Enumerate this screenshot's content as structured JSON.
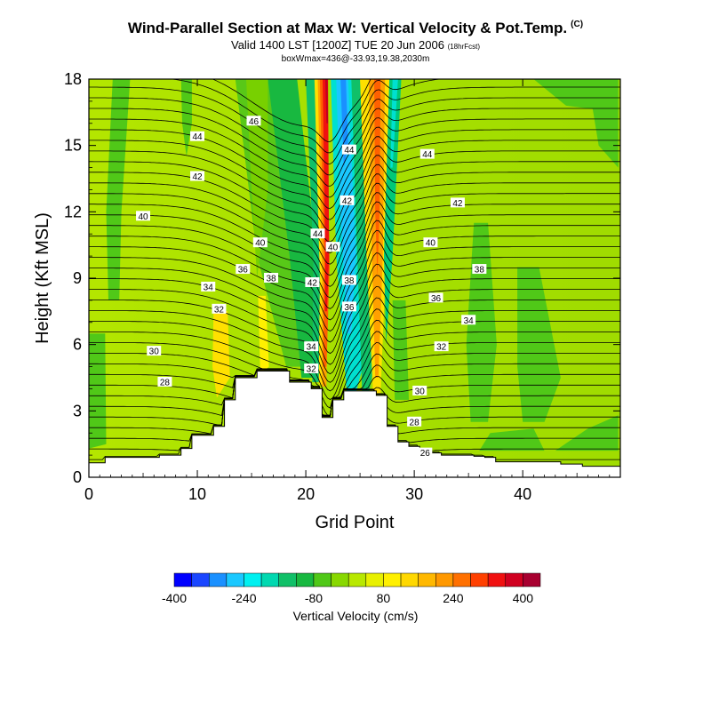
{
  "header": {
    "title": "Wind-Parallel Section at Max W: Vertical Velocity & Pot.Temp.",
    "title_mark": "(C)",
    "subtitle": "Valid 1400 LST [1200Z] TUE 20 Jun 2006",
    "subtitle_note": "(18hrFcst)",
    "subtitle2": "boxWmax=436@-33.93,19.38,2030m"
  },
  "chart_data": {
    "type": "heatmap",
    "xlabel": "Grid Point",
    "ylabel": "Height (Kft MSL)",
    "xlim": [
      0,
      49
    ],
    "ylim": [
      0,
      18
    ],
    "xticks": [
      0,
      10,
      20,
      30,
      40
    ],
    "yticks": [
      0,
      3,
      6,
      9,
      12,
      15,
      18
    ],
    "terrain_heights_kft": [
      0.65,
      0.65,
      0.9,
      0.9,
      0.9,
      0.9,
      0.9,
      1.0,
      1.0,
      1.3,
      1.9,
      1.9,
      2.3,
      3.5,
      4.5,
      4.5,
      4.8,
      4.8,
      4.8,
      4.3,
      4.3,
      4.0,
      2.7,
      3.5,
      3.9,
      3.9,
      3.9,
      3.7,
      2.3,
      1.6,
      1.4,
      1.2,
      1.1,
      1.0,
      1.0,
      1.0,
      0.95,
      0.9,
      0.7,
      0.7,
      0.7,
      0.7,
      0.7,
      0.7,
      0.6,
      0.6,
      0.5,
      0.5,
      0.5,
      0.5
    ],
    "contour_field": "Potential Temperature (C)",
    "contour_labels": [
      {
        "x": 7.0,
        "y": 4.3,
        "value": "28"
      },
      {
        "x": 6.0,
        "y": 5.7,
        "value": "30"
      },
      {
        "x": 12.0,
        "y": 7.6,
        "value": "32"
      },
      {
        "x": 11.0,
        "y": 8.6,
        "value": "34"
      },
      {
        "x": 14.2,
        "y": 9.4,
        "value": "36"
      },
      {
        "x": 16.8,
        "y": 9.0,
        "value": "38"
      },
      {
        "x": 15.8,
        "y": 10.6,
        "value": "40"
      },
      {
        "x": 10.0,
        "y": 13.6,
        "value": "42"
      },
      {
        "x": 10.0,
        "y": 15.4,
        "value": "44"
      },
      {
        "x": 15.2,
        "y": 16.1,
        "value": "46"
      },
      {
        "x": 5.0,
        "y": 11.8,
        "value": "40"
      },
      {
        "x": 20.5,
        "y": 5.9,
        "value": "34"
      },
      {
        "x": 20.5,
        "y": 4.9,
        "value": "32"
      },
      {
        "x": 20.6,
        "y": 8.8,
        "value": "42"
      },
      {
        "x": 21.1,
        "y": 11.0,
        "value": "44"
      },
      {
        "x": 22.5,
        "y": 10.4,
        "value": "40"
      },
      {
        "x": 24.0,
        "y": 8.9,
        "value": "38"
      },
      {
        "x": 24.0,
        "y": 7.7,
        "value": "36"
      },
      {
        "x": 23.8,
        "y": 12.5,
        "value": "42"
      },
      {
        "x": 24.0,
        "y": 14.8,
        "value": "44"
      },
      {
        "x": 31.2,
        "y": 14.6,
        "value": "44"
      },
      {
        "x": 34.0,
        "y": 12.4,
        "value": "42"
      },
      {
        "x": 31.5,
        "y": 10.6,
        "value": "40"
      },
      {
        "x": 36.0,
        "y": 9.4,
        "value": "38"
      },
      {
        "x": 32.0,
        "y": 8.1,
        "value": "36"
      },
      {
        "x": 35.0,
        "y": 7.1,
        "value": "34"
      },
      {
        "x": 32.5,
        "y": 5.9,
        "value": "32"
      },
      {
        "x": 30.5,
        "y": 3.9,
        "value": "30"
      },
      {
        "x": 30.0,
        "y": 2.5,
        "value": "28"
      },
      {
        "x": 31.0,
        "y": 1.1,
        "value": "26"
      }
    ],
    "colorbar": {
      "label": "Vertical Velocity (cm/s)",
      "tick_labels": [
        "-400",
        "-240",
        "-80",
        "80",
        "240",
        "400"
      ],
      "colors": [
        "#0000ff",
        "#1a46ff",
        "#1a90ff",
        "#1ac8ff",
        "#00f0f0",
        "#00d8b0",
        "#10c068",
        "#18b840",
        "#50c818",
        "#88d800",
        "#b8e800",
        "#e8f000",
        "#fff000",
        "#ffd800",
        "#ffb800",
        "#ff9800",
        "#ff7000",
        "#ff4000",
        "#f01010",
        "#d00020",
        "#a80030"
      ]
    }
  }
}
